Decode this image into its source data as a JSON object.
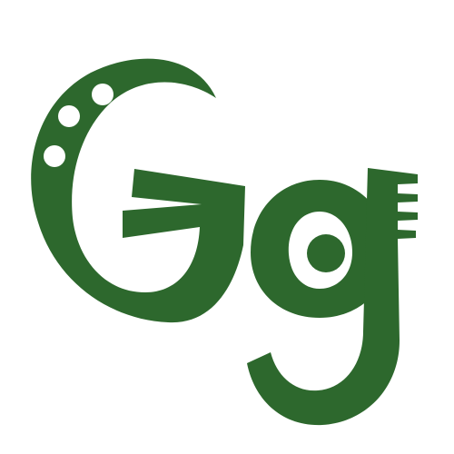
{
  "logo": {
    "letters": "Gg",
    "icon": "stylized-gg-monogram",
    "colors": {
      "primary": "#2d682d",
      "background": "#ffffff"
    }
  }
}
